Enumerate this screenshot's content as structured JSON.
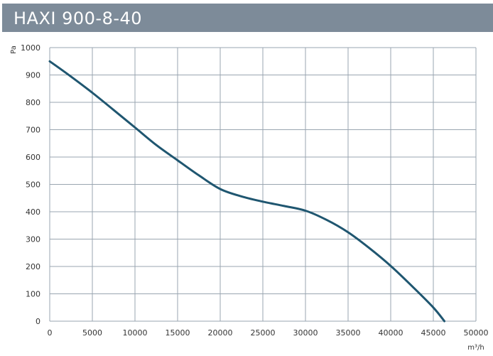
{
  "header": {
    "title": "HAXI 900-8-40"
  },
  "chart_data": {
    "type": "line",
    "title": "HAXI 900-8-40",
    "xlabel": "m³/h",
    "ylabel": "Pa",
    "xlim": [
      0,
      50000
    ],
    "ylim": [
      0,
      1000
    ],
    "x_ticks": [
      0,
      5000,
      10000,
      15000,
      20000,
      25000,
      30000,
      35000,
      40000,
      45000,
      50000
    ],
    "y_ticks": [
      0,
      100,
      200,
      300,
      400,
      500,
      600,
      700,
      800,
      900,
      1000
    ],
    "grid": true,
    "colors": {
      "line": "#1f5670",
      "grid": "#9aa5b0",
      "header": "#7d8b99"
    },
    "series": [
      {
        "x": [
          0,
          2500,
          5000,
          7500,
          10000,
          12500,
          15000,
          17500,
          20000,
          22500,
          25000,
          27500,
          30000,
          32500,
          35000,
          37500,
          40000,
          42500,
          45000,
          46300
        ],
        "y": [
          950,
          894,
          835,
          772,
          708,
          644,
          588,
          533,
          483,
          456,
          437,
          421,
          404,
          370,
          325,
          267,
          202,
          128,
          50,
          0
        ]
      }
    ]
  }
}
